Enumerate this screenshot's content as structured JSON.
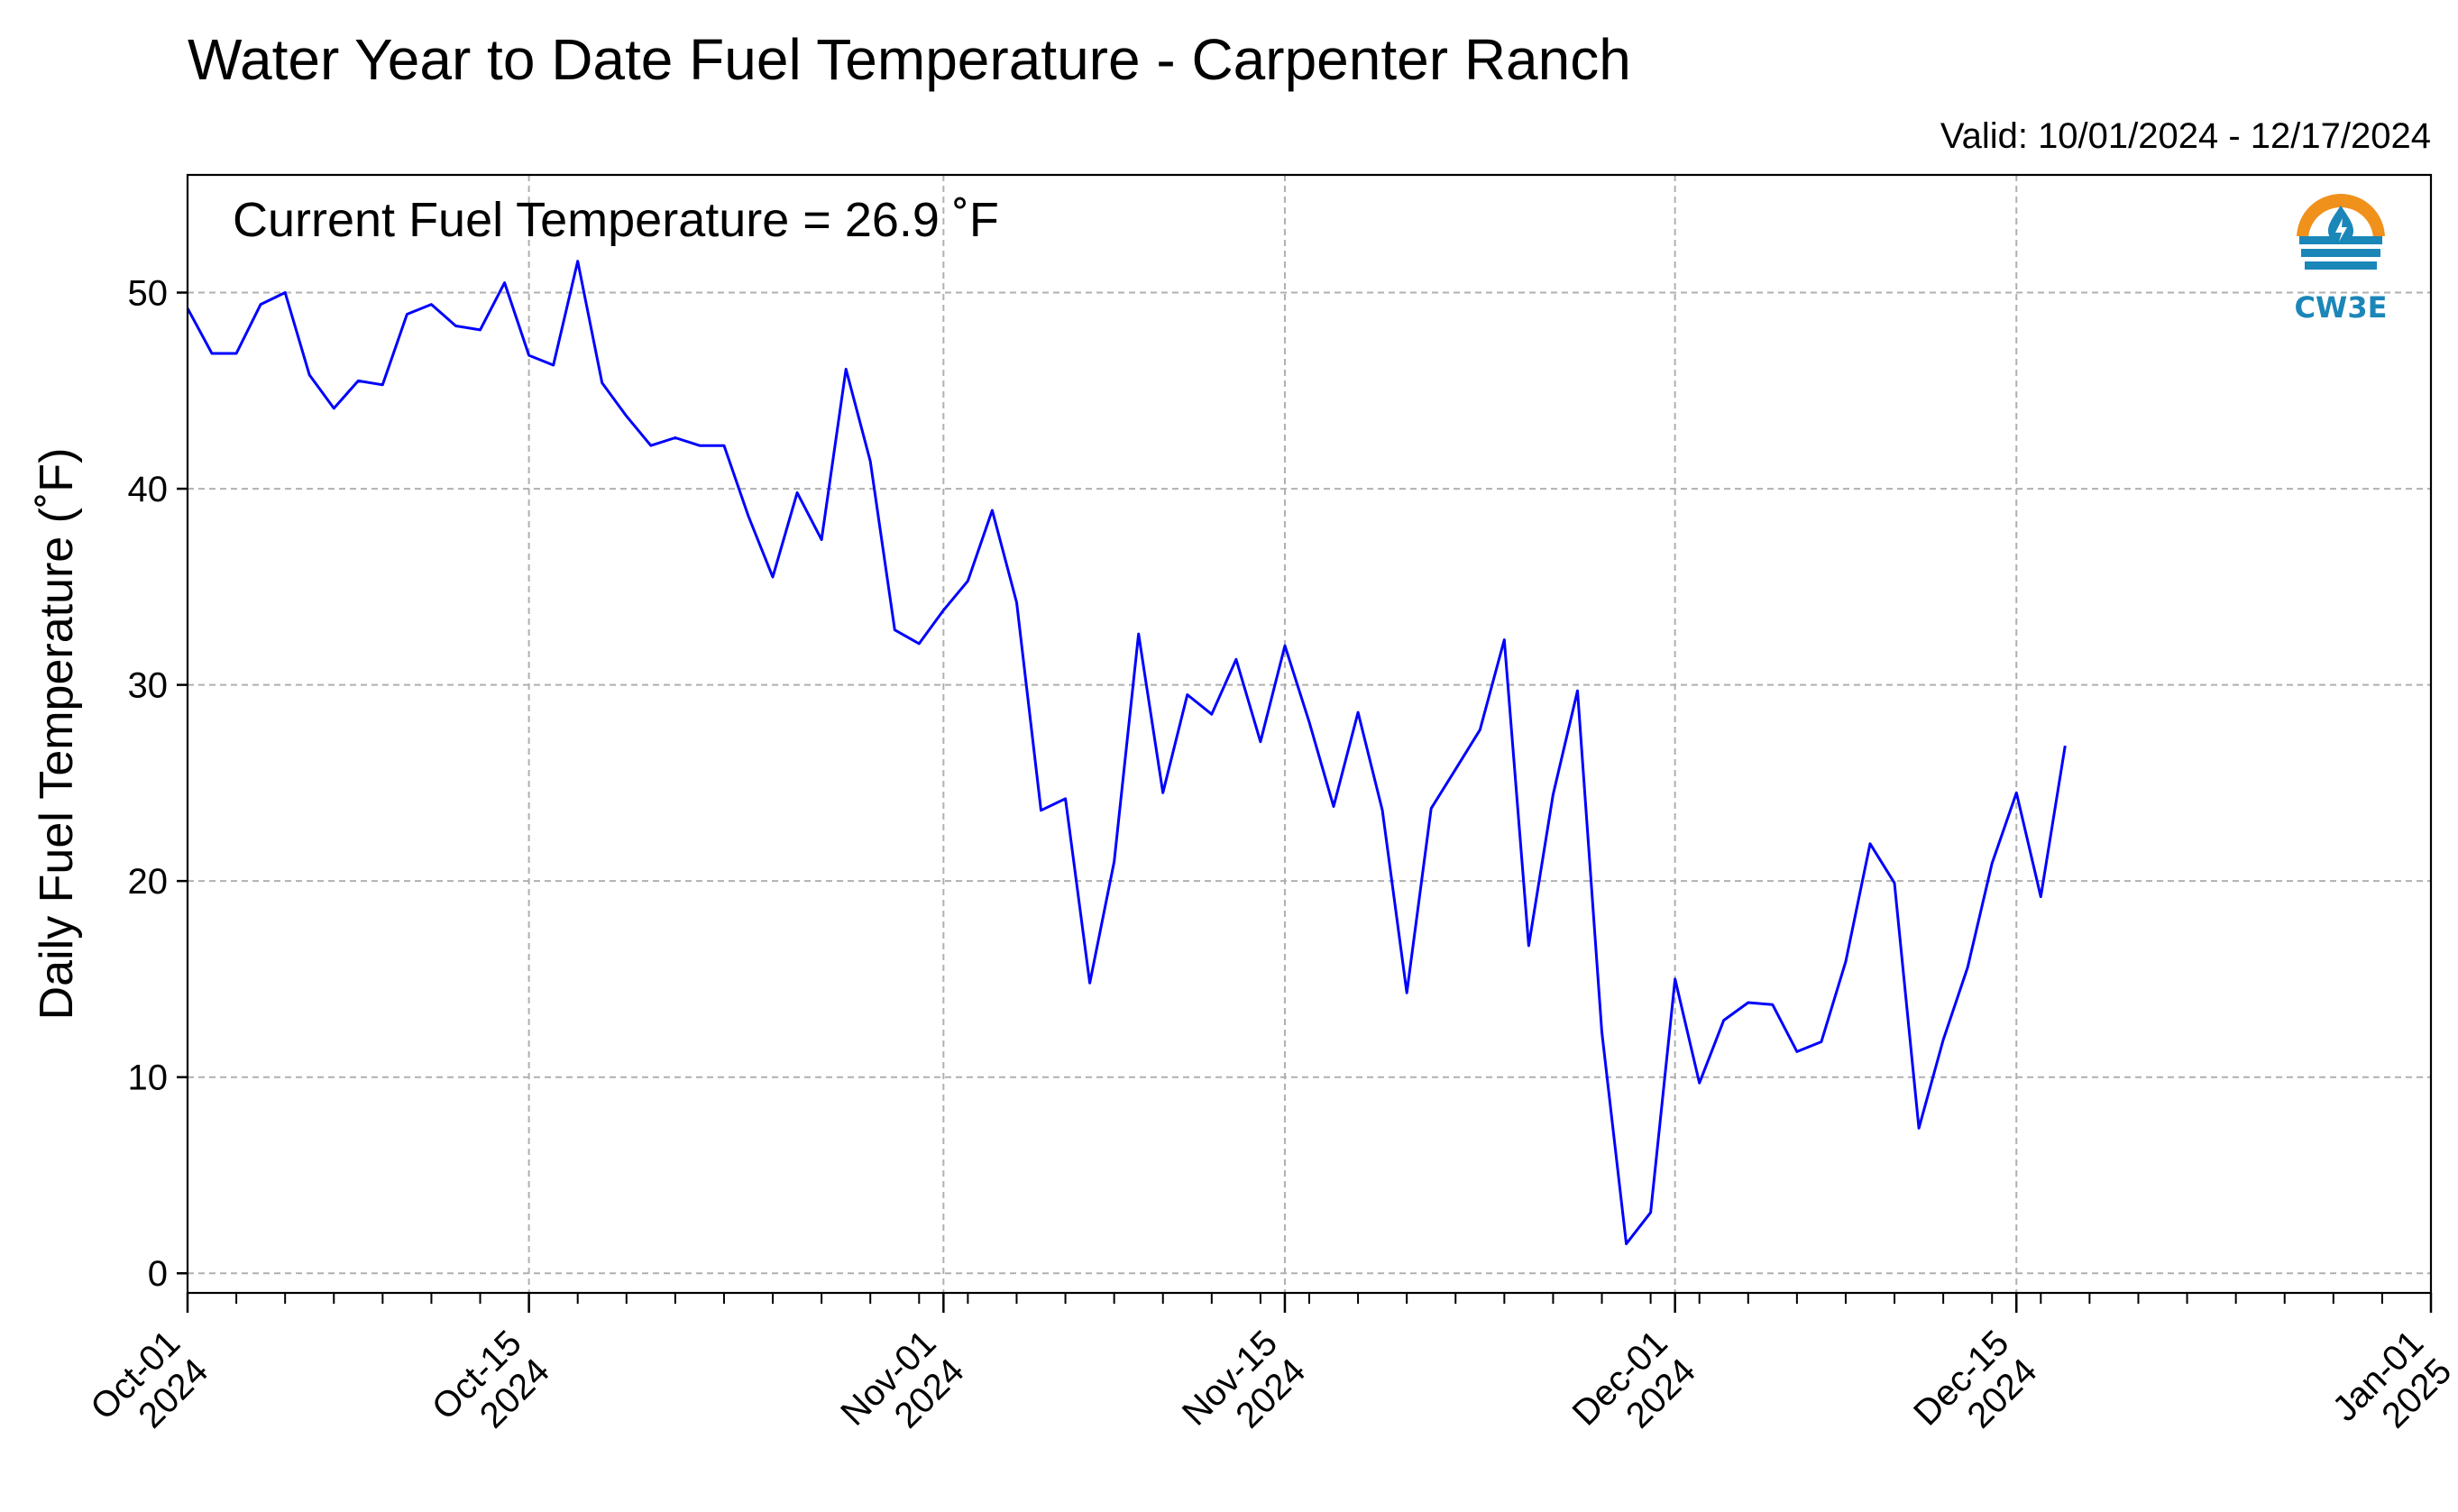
{
  "colors": {
    "series": "#0000ff",
    "grid": "#b0b0b0",
    "logo_orange": "#f0911c",
    "logo_blue": "#1b86b8"
  },
  "valid": "Valid: 10/01/2024 - 12/17/2024",
  "annotation": "Current Fuel Temperature = 26.9  ˚F",
  "logo": {
    "icon": "cw3e-logo-icon",
    "text": "CW3E"
  },
  "chart_data": {
    "type": "line",
    "title": "Water Year to Date Fuel Temperature - Carpenter Ranch",
    "xlabel": "",
    "ylabel": "Daily Fuel Temperature (˚F)",
    "xlim": [
      "2024-10-01",
      "2025-01-01"
    ],
    "ylim": [
      -1,
      56
    ],
    "grid": true,
    "legend": "none",
    "yticks": [
      0,
      10,
      20,
      30,
      40,
      50
    ],
    "xticks": [
      {
        "date": "2024-10-01",
        "line1": "Oct-01",
        "line2": "2024"
      },
      {
        "date": "2024-10-15",
        "line1": "Oct-15",
        "line2": "2024"
      },
      {
        "date": "2024-11-01",
        "line1": "Nov-01",
        "line2": "2024"
      },
      {
        "date": "2024-11-15",
        "line1": "Nov-15",
        "line2": "2024"
      },
      {
        "date": "2024-12-01",
        "line1": "Dec-01",
        "line2": "2024"
      },
      {
        "date": "2024-12-15",
        "line1": "Dec-15",
        "line2": "2024"
      },
      {
        "date": "2025-01-01",
        "line1": "Jan-01",
        "line2": "2025"
      }
    ],
    "series": [
      {
        "x": [
          "2024-10-01",
          "2024-10-02",
          "2024-10-03",
          "2024-10-04",
          "2024-10-05",
          "2024-10-06",
          "2024-10-07",
          "2024-10-08",
          "2024-10-09",
          "2024-10-10",
          "2024-10-11",
          "2024-10-12",
          "2024-10-13",
          "2024-10-14",
          "2024-10-15",
          "2024-10-16",
          "2024-10-17",
          "2024-10-18",
          "2024-10-19",
          "2024-10-20",
          "2024-10-21",
          "2024-10-22",
          "2024-10-23",
          "2024-10-24",
          "2024-10-25",
          "2024-10-26",
          "2024-10-27",
          "2024-10-28",
          "2024-10-29",
          "2024-10-30",
          "2024-10-31",
          "2024-11-01",
          "2024-11-02",
          "2024-11-03",
          "2024-11-04",
          "2024-11-05",
          "2024-11-06",
          "2024-11-07",
          "2024-11-08",
          "2024-11-09",
          "2024-11-10",
          "2024-11-11",
          "2024-11-12",
          "2024-11-13",
          "2024-11-14",
          "2024-11-15",
          "2024-11-16",
          "2024-11-17",
          "2024-11-18",
          "2024-11-19",
          "2024-11-20",
          "2024-11-21",
          "2024-11-22",
          "2024-11-23",
          "2024-11-24",
          "2024-11-25",
          "2024-11-26",
          "2024-11-27",
          "2024-11-28",
          "2024-11-29",
          "2024-11-30",
          "2024-12-01",
          "2024-12-02",
          "2024-12-03",
          "2024-12-04",
          "2024-12-05",
          "2024-12-06",
          "2024-12-07",
          "2024-12-08",
          "2024-12-09",
          "2024-12-10",
          "2024-12-11",
          "2024-12-12",
          "2024-12-13",
          "2024-12-14",
          "2024-12-15",
          "2024-12-16",
          "2024-12-17"
        ],
        "y": [
          49.2,
          46.9,
          46.9,
          49.4,
          50.0,
          45.8,
          44.1,
          45.5,
          45.3,
          48.9,
          49.4,
          48.3,
          48.1,
          50.5,
          46.8,
          46.3,
          51.6,
          45.4,
          43.7,
          42.2,
          42.6,
          42.2,
          42.2,
          38.6,
          35.5,
          39.8,
          37.4,
          46.1,
          41.4,
          32.8,
          32.1,
          33.8,
          35.3,
          38.9,
          34.2,
          23.6,
          24.2,
          14.8,
          21.0,
          32.6,
          24.5,
          29.5,
          28.5,
          31.3,
          27.1,
          32.0,
          28.1,
          23.8,
          28.6,
          23.6,
          14.3,
          23.7,
          25.7,
          27.7,
          32.3,
          16.7,
          24.4,
          29.7,
          12.3,
          1.5,
          3.1,
          15.0,
          9.7,
          12.9,
          13.8,
          13.7,
          11.3,
          11.8,
          15.9,
          21.9,
          19.9,
          7.4,
          11.9,
          15.6,
          20.9,
          24.5,
          19.2,
          26.9
        ]
      }
    ]
  }
}
